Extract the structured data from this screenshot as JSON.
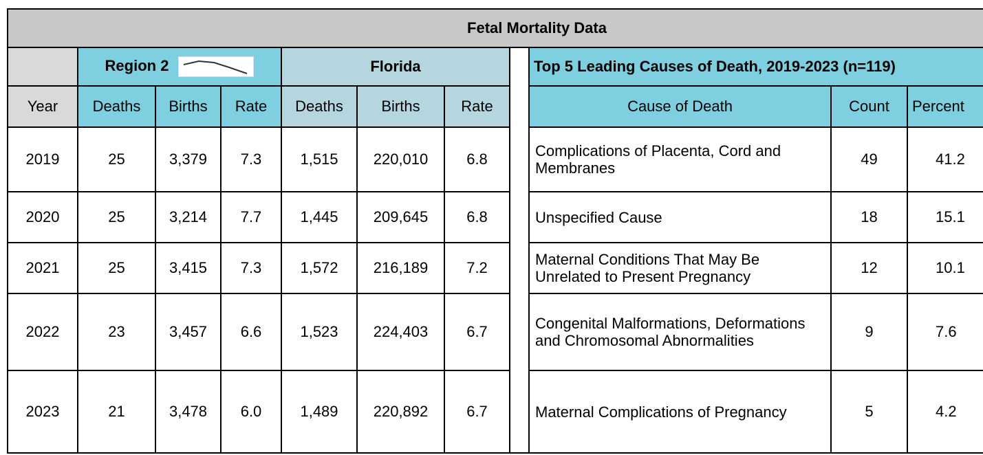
{
  "title": "Fetal Mortality Data",
  "region": "Region 2",
  "state": "Florida",
  "causes_title": "Top 5 Leading Causes of Death, 2019-2023 (n=119)",
  "columns": {
    "year": "Year",
    "deaths": "Deaths",
    "births": "Births",
    "rate": "Rate",
    "cause": "Cause of Death",
    "count": "Count",
    "percent": "Percent"
  },
  "rows": [
    [
      "2019",
      "25",
      "3,379",
      "7.3",
      "1,515",
      "220,010",
      "6.8"
    ],
    [
      "2020",
      "25",
      "3,214",
      "7.7",
      "1,445",
      "209,645",
      "6.8"
    ],
    [
      "2021",
      "25",
      "3,415",
      "7.3",
      "1,572",
      "216,189",
      "7.2"
    ],
    [
      "2022",
      "23",
      "3,457",
      "6.6",
      "1,523",
      "224,403",
      "6.7"
    ],
    [
      "2023",
      "21",
      "3,478",
      "6.0",
      "1,489",
      "220,892",
      "6.7"
    ]
  ],
  "causes": [
    [
      "Complications of Placenta, Cord and Membranes",
      "49",
      "41.2"
    ],
    [
      "Unspecified Cause",
      "18",
      "15.1"
    ],
    [
      "Maternal Conditions That May Be Unrelated to Present Pregnancy",
      "12",
      "10.1"
    ],
    [
      "Congenital Malformations, Deformations and Chromosomal Abnormalities",
      "9",
      "7.6"
    ],
    [
      "Maternal Complications of Pregnancy",
      "5",
      "4.2"
    ]
  ]
}
